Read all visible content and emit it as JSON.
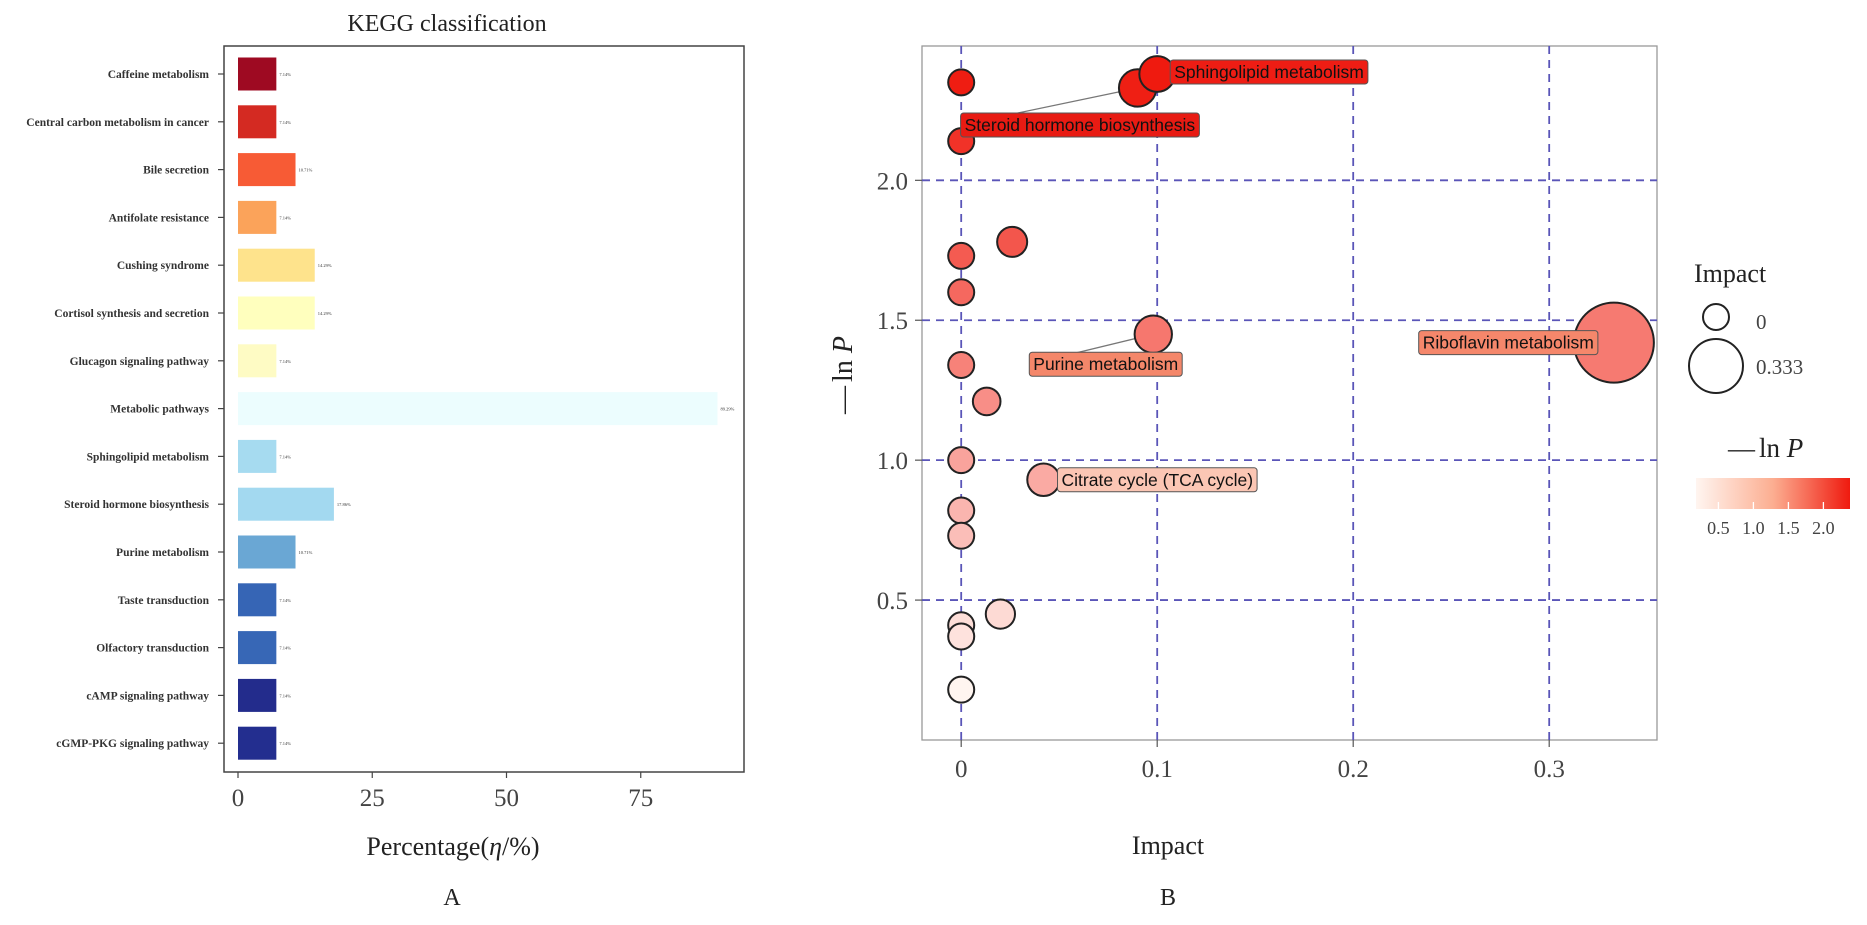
{
  "panel_labels": {
    "a": "A",
    "b": "B"
  },
  "chart_data": [
    {
      "type": "bar",
      "orientation": "horizontal",
      "title": "KEGG classification",
      "xlabel": "Percentage(η/%)",
      "xlabel_parts": {
        "prefix": "Percentage(",
        "symbol": "η",
        "suffix": "/%)"
      },
      "ylabel": "",
      "xlim": [
        0,
        95
      ],
      "xticks": [
        0,
        25,
        50,
        75
      ],
      "categories": [
        "Caffeine metabolism",
        "Central carbon metabolism in cancer",
        "Bile secretion",
        "Antifolate resistance",
        "Cushing syndrome",
        "Cortisol synthesis and secretion",
        "Glucagon signaling pathway",
        "Metabolic pathways",
        "Sphingolipid metabolism",
        "Steroid hormone biosynthesis",
        "Purine metabolism",
        "Taste transduction",
        "Olfactory transduction",
        "cAMP signaling pathway",
        "cGMP-PKG signaling pathway"
      ],
      "values": [
        7.14,
        7.14,
        10.71,
        7.14,
        14.29,
        14.29,
        7.14,
        89.29,
        7.14,
        17.86,
        10.71,
        7.14,
        7.14,
        7.14,
        7.14
      ],
      "value_labels": [
        "7.14%",
        "7.14%",
        "10.71%",
        "7.14%",
        "14.29%",
        "14.29%",
        "7.14%",
        "89.29%",
        "7.14%",
        "17.86%",
        "10.71%",
        "7.14%",
        "7.14%",
        "7.14%",
        "7.14%"
      ],
      "colors": [
        "#9e0a22",
        "#d42a22",
        "#f75b35",
        "#fba35a",
        "#fee38c",
        "#ffffbe",
        "#fefbc4",
        "#ecfdfe",
        "#a6dbf0",
        "#a3d9f0",
        "#6aa7d4",
        "#3665b5",
        "#3767b6",
        "#232c8c",
        "#232e8f"
      ]
    },
    {
      "type": "scatter",
      "subtype": "bubble",
      "xlabel": "Impact",
      "ylabel_parts": {
        "dash": "—",
        "ln": "ln ",
        "symbol": "P"
      },
      "xlim": [
        -0.02,
        0.355
      ],
      "ylim": [
        0.0,
        2.48
      ],
      "xticks": [
        0,
        0.1,
        0.2,
        0.3
      ],
      "xtick_labels": [
        "0",
        "0.1",
        "0.2",
        "0.3"
      ],
      "yticks": [
        0.5,
        1.0,
        1.5,
        2.0
      ],
      "ytick_labels": [
        "0.5",
        "1.0",
        "1.5",
        "2.0"
      ],
      "grid": "dashed",
      "grid_color": "#5a55b8",
      "points": [
        {
          "x": 0.0,
          "y": 2.35,
          "impact": 0.0,
          "label": ""
        },
        {
          "x": 0.0,
          "y": 2.14,
          "impact": 0.0,
          "label": ""
        },
        {
          "x": 0.1,
          "y": 2.38,
          "impact": 0.06,
          "label": "Sphingolipid metabolism"
        },
        {
          "x": 0.09,
          "y": 2.33,
          "impact": 0.07,
          "label": "Steroid hormone biosynthesis"
        },
        {
          "x": 0.026,
          "y": 1.78,
          "impact": 0.025,
          "label": ""
        },
        {
          "x": 0.0,
          "y": 1.73,
          "impact": 0.0,
          "label": ""
        },
        {
          "x": 0.0,
          "y": 1.6,
          "impact": 0.0,
          "label": ""
        },
        {
          "x": 0.0,
          "y": 1.34,
          "impact": 0.0,
          "label": ""
        },
        {
          "x": 0.098,
          "y": 1.45,
          "impact": 0.07,
          "label": "Purine metabolism"
        },
        {
          "x": 0.333,
          "y": 1.42,
          "impact": 0.333,
          "label": "Riboflavin metabolism"
        },
        {
          "x": 0.013,
          "y": 1.21,
          "impact": 0.01,
          "label": ""
        },
        {
          "x": 0.0,
          "y": 1.0,
          "impact": 0.0,
          "label": ""
        },
        {
          "x": 0.042,
          "y": 0.93,
          "impact": 0.04,
          "label": "Citrate cycle (TCA cycle)"
        },
        {
          "x": 0.0,
          "y": 0.82,
          "impact": 0.0,
          "label": ""
        },
        {
          "x": 0.0,
          "y": 0.73,
          "impact": 0.0,
          "label": ""
        },
        {
          "x": 0.02,
          "y": 0.45,
          "impact": 0.02,
          "label": ""
        },
        {
          "x": 0.0,
          "y": 0.41,
          "impact": 0.0,
          "label": ""
        },
        {
          "x": 0.0,
          "y": 0.37,
          "impact": 0.0,
          "label": ""
        },
        {
          "x": 0.0,
          "y": 0.18,
          "impact": 0.0,
          "label": ""
        }
      ],
      "legend_size": {
        "title": "Impact",
        "entries": [
          {
            "label": "0",
            "value": 0
          },
          {
            "label": "0.333",
            "value": 0.333
          }
        ]
      },
      "legend_color": {
        "title_parts": {
          "dash": "—",
          "ln": "ln ",
          "symbol": "P"
        },
        "tick_labels": [
          "0.5",
          "1.0",
          "1.5",
          "2.0"
        ],
        "ticks": [
          0.5,
          1.0,
          1.5,
          2.0
        ],
        "range": [
          0.18,
          2.38
        ],
        "color_low": "#fff5f0",
        "color_high": "#ef1a0f"
      }
    }
  ]
}
